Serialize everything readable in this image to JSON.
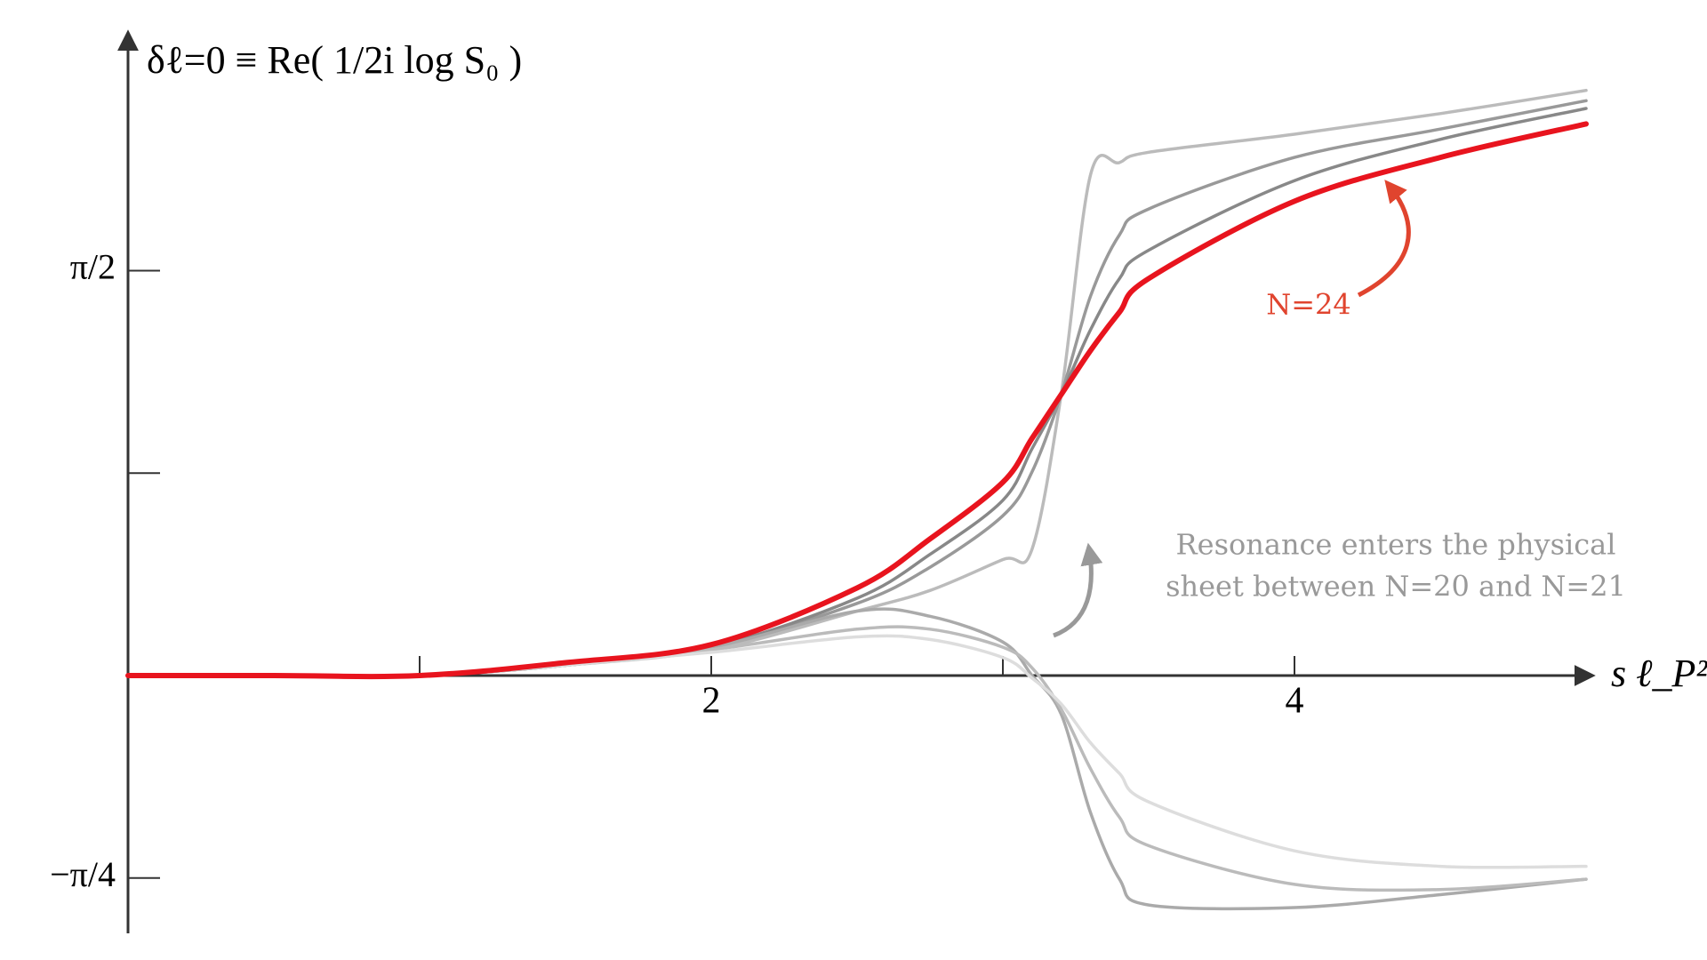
{
  "chart_data": {
    "type": "line",
    "title": "δℓ=0 ≡ Re( 1/2i log S₀ )",
    "x_label": "s ℓ_P²",
    "annotations": [
      "Resonance enters the physical",
      "sheet between N=20 and N=21"
    ],
    "x": [
      0,
      0.5,
      1,
      1.5,
      2,
      2.5,
      2.75,
      3,
      3.1,
      3.2,
      3.3,
      3.4,
      3.5,
      4,
      4.5,
      5
    ],
    "series": [
      {
        "color": "#bbbbbb",
        "values": [
          0,
          0,
          0,
          0.04,
          0.1,
          0.25,
          0.33,
          0.45,
          0.49,
          1.09,
          1.94,
          1.99,
          2.03,
          2.1,
          2.18,
          2.27
        ]
      },
      {
        "color": "#999999",
        "values": [
          0,
          0,
          0,
          0.04,
          0.11,
          0.28,
          0.42,
          0.62,
          0.79,
          1.09,
          1.47,
          1.71,
          1.81,
          2.01,
          2.12,
          2.23
        ]
      },
      {
        "color": "#888888",
        "values": [
          0,
          0,
          0,
          0.04,
          0.11,
          0.3,
          0.47,
          0.68,
          0.88,
          1.09,
          1.34,
          1.54,
          1.65,
          1.92,
          2.08,
          2.2
        ]
      },
      {
        "color": "#aaaaaa",
        "values": [
          0,
          0,
          0,
          0.04,
          0.11,
          0.25,
          0.23,
          0.13,
          0,
          -0.15,
          -0.53,
          -0.79,
          -0.89,
          -0.9,
          -0.85,
          -0.79
        ]
      },
      {
        "color": "#bbbbbb",
        "values": [
          0,
          0,
          0,
          0.04,
          0.1,
          0.18,
          0.18,
          0.11,
          0.03,
          -0.13,
          -0.36,
          -0.55,
          -0.66,
          -0.81,
          -0.83,
          -0.79
        ]
      },
      {
        "color": "#dddddd",
        "values": [
          0,
          0,
          0,
          0.04,
          0.09,
          0.15,
          0.14,
          0.07,
          -0.01,
          -0.11,
          -0.26,
          -0.38,
          -0.49,
          -0.68,
          -0.74,
          -0.74
        ]
      },
      {
        "name": "N=24",
        "color": "#e8141e",
        "values": [
          0,
          0,
          0,
          0.05,
          0.12,
          0.34,
          0.53,
          0.75,
          0.92,
          1.09,
          1.26,
          1.41,
          1.54,
          1.84,
          2.01,
          2.14
        ]
      }
    ],
    "xlim": [
      0,
      5
    ],
    "ylim": [
      -1,
      2.5
    ],
    "xticks": [
      {
        "value": 1,
        "label": null
      },
      2,
      {
        "value": 3,
        "label": null
      },
      4
    ],
    "yticks": [
      {
        "value": -0.7854,
        "label": "−π/4"
      },
      {
        "value": 0.7854,
        "label": null
      },
      {
        "value": 1.5708,
        "label": "π/2"
      }
    ]
  }
}
